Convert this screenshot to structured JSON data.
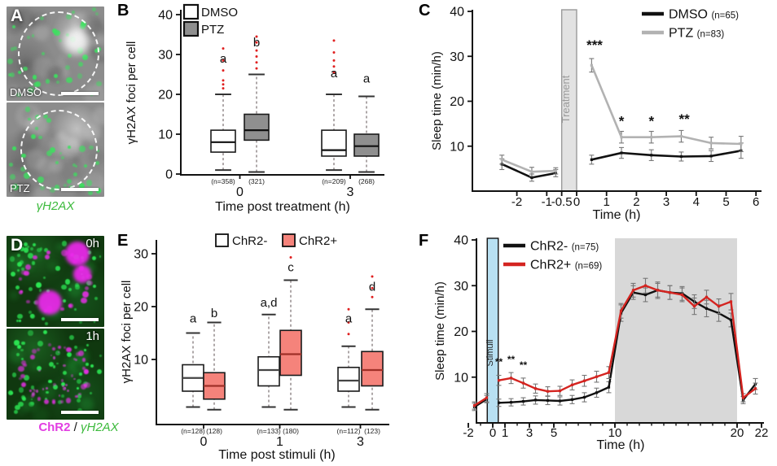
{
  "figure": {
    "colors": {
      "chr2_magenta": "#e23ee2",
      "stain_green": "#3cba3c",
      "ptz_box_gray": "#8f8f8f",
      "chr2plus_box_salmon": "#f5837b",
      "chr2plus_line_red": "#d42420",
      "stimuli_bar_blue": "#b8e0f2",
      "outlier_red": "#e02020"
    },
    "panels": {
      "A": {
        "label": "A",
        "images": [
          {
            "tag": "DMSO"
          },
          {
            "tag": "PTZ"
          }
        ],
        "caption": "γH2AX"
      },
      "D": {
        "label": "D",
        "images": [
          {
            "tag": "0h"
          },
          {
            "tag": "1h"
          }
        ],
        "caption": {
          "protein": "ChR2",
          "separator": " / ",
          "stain": "γH2AX"
        }
      }
    }
  },
  "chart_data": [
    {
      "id": "B",
      "panel_label": "B",
      "type": "box",
      "ylabel": "γH2AX foci per cell",
      "xlabel": "Time post treatment (h)",
      "ylim": [
        0,
        40
      ],
      "yticks": [
        0,
        10,
        20,
        30,
        40
      ],
      "legend": [
        {
          "name": "DMSO",
          "fill": "#ffffff"
        },
        {
          "name": "PTZ",
          "fill": "#8f8f8f"
        }
      ],
      "groups": [
        {
          "tick": "0",
          "boxes": [
            {
              "series": "DMSO",
              "n": "(n=358)",
              "letter": "a",
              "letter_y": 28,
              "lo": 1,
              "q1": 5.5,
              "med": 8,
              "q3": 11,
              "hi": 20,
              "outliers": [
                21.5,
                22.5,
                23.5,
                26,
                28.5,
                31.5
              ],
              "median_color": "#111111"
            },
            {
              "series": "PTZ",
              "n": "(321)",
              "letter": "b",
              "letter_y": 32,
              "lo": 0.5,
              "q1": 8.5,
              "med": 11,
              "q3": 15,
              "hi": 25,
              "outliers": [
                26.5,
                28,
                29.5,
                31,
                33,
                34.5
              ],
              "median_color": "#111111"
            }
          ]
        },
        {
          "tick": "3",
          "boxes": [
            {
              "series": "DMSO",
              "n": "(n=209)",
              "letter": "a",
              "letter_y": 24.3,
              "lo": 1,
              "q1": 4.5,
              "med": 6,
              "q3": 11,
              "hi": 20,
              "outliers": [
                25.5,
                27,
                28.5,
                30.5,
                33.5
              ],
              "median_color": "#111111"
            },
            {
              "series": "PTZ",
              "n": "(268)",
              "letter": "a",
              "letter_y": 23,
              "lo": 0.5,
              "q1": 4.5,
              "med": 7,
              "q3": 10,
              "hi": 19.5,
              "outliers": [],
              "median_color": "#111111"
            }
          ]
        }
      ]
    },
    {
      "id": "C",
      "panel_label": "C",
      "type": "line",
      "ylabel": "Sleep time (min/h)",
      "xlabel": "Time (h)",
      "ylim": [
        0,
        40
      ],
      "yticks": [
        10,
        20,
        30,
        40
      ],
      "xticks": [
        {
          "v": -2,
          "l": "-2"
        },
        {
          "v": -1,
          "l": "-1"
        },
        {
          "v": -0.5,
          "l": "-0.5"
        },
        {
          "v": 0,
          "l": "0"
        },
        {
          "v": 1,
          "l": "1"
        },
        {
          "v": 2,
          "l": "2"
        },
        {
          "v": 3,
          "l": "3"
        },
        {
          "v": 4,
          "l": "4"
        },
        {
          "v": 5,
          "l": "5"
        },
        {
          "v": 6,
          "l": "6"
        }
      ],
      "band": {
        "x0": -0.5,
        "x1": 0,
        "label": "Treatment",
        "fill": "#e2e2e2",
        "stroke": "#999999",
        "text_color": "#9a9a9a",
        "name": "treatment-band"
      },
      "series": [
        {
          "name": "DMSO",
          "n": "(n=65)",
          "color": "#111111",
          "x": [
            -2.5,
            -1.5,
            -0.7,
            0.5,
            1.5,
            2.5,
            3.5,
            4.5,
            5.5
          ],
          "y": [
            6,
            3,
            4,
            7,
            8.5,
            8,
            7.7,
            7.8,
            9
          ],
          "err": [
            1.2,
            0.8,
            0.8,
            1.0,
            1.2,
            1.2,
            1.0,
            1.2,
            1.7
          ]
        },
        {
          "name": "PTZ",
          "n": "(n=83)",
          "color": "#b2b2b2",
          "x": [
            -2.5,
            -1.5,
            -0.7,
            0.5,
            1.5,
            2.5,
            3.5,
            4.5,
            5.5
          ],
          "y": [
            7,
            4.3,
            4.5,
            28,
            12,
            12,
            12.2,
            10.7,
            10.5
          ],
          "err": [
            1.0,
            1.0,
            0.7,
            1.5,
            1.3,
            1.3,
            1.3,
            1.3,
            1.7
          ]
        }
      ],
      "annotations": [
        {
          "x": 0.6,
          "y": 31.5,
          "text": "***"
        },
        {
          "x": 1.5,
          "y": 14.6,
          "text": "*"
        },
        {
          "x": 2.5,
          "y": 14.6,
          "text": "*"
        },
        {
          "x": 3.6,
          "y": 15,
          "text": "**"
        }
      ]
    },
    {
      "id": "E",
      "panel_label": "E",
      "type": "box",
      "ylabel": "γH2AX foci per cell",
      "xlabel": "Time post stimuli (h)",
      "ylim": [
        0,
        30
      ],
      "yticks": [
        10,
        20,
        30
      ],
      "legend": [
        {
          "name": "ChR2-",
          "fill": "#ffffff"
        },
        {
          "name": "ChR2+",
          "fill": "#f5837b"
        }
      ],
      "groups": [
        {
          "tick": "0",
          "boxes": [
            {
              "series": "ChR2-",
              "n": "(n=128)",
              "letter": "a",
              "letter_y": 17,
              "lo": 1,
              "q1": 4,
              "med": 6.5,
              "q3": 9,
              "hi": 15,
              "outliers": [],
              "median_color": "#444444"
            },
            {
              "series": "ChR2+",
              "n": "(128)",
              "letter": "b",
              "letter_y": 18,
              "lo": 0.5,
              "q1": 2.5,
              "med": 5,
              "q3": 7.5,
              "hi": 17,
              "outliers": [],
              "median_color": "#a03028"
            }
          ]
        },
        {
          "tick": "1",
          "boxes": [
            {
              "series": "ChR2-",
              "n": "(n=133)",
              "letter": "a,d",
              "letter_y": 20,
              "lo": 1,
              "q1": 5,
              "med": 8,
              "q3": 10.5,
              "hi": 18.5,
              "outliers": [],
              "median_color": "#444444"
            },
            {
              "series": "ChR2+",
              "n": "(180)",
              "letter": "c",
              "letter_y": 26.7,
              "lo": 0.5,
              "q1": 7,
              "med": 11,
              "q3": 15.5,
              "hi": 25,
              "outliers": [
                29.3
              ],
              "median_color": "#a03028"
            }
          ]
        },
        {
          "tick": "3",
          "boxes": [
            {
              "series": "ChR2-",
              "n": "(n=112)",
              "letter": "a",
              "letter_y": 17,
              "lo": 1,
              "q1": 4,
              "med": 6,
              "q3": 8.5,
              "hi": 12.5,
              "outliers": [
                14.8,
                17,
                19.5
              ],
              "median_color": "#444444"
            },
            {
              "series": "ChR2+",
              "n": "(123)",
              "letter": "d",
              "letter_y": 23,
              "lo": 0.5,
              "q1": 5,
              "med": 8,
              "q3": 11.5,
              "hi": 19.5,
              "outliers": [
                21.8,
                23.5,
                25.7
              ],
              "median_color": "#a03028"
            }
          ]
        }
      ]
    },
    {
      "id": "F",
      "panel_label": "F",
      "type": "line",
      "ylabel": "Sleep time (min/h)",
      "xlabel": "Time (h)",
      "ylim": [
        0,
        40
      ],
      "yticks": [
        10,
        20,
        30,
        40
      ],
      "xticks": [
        {
          "v": -2,
          "l": "-2"
        },
        {
          "v": 0,
          "l": "0"
        },
        {
          "v": 1,
          "l": "1"
        },
        {
          "v": 3,
          "l": "3"
        },
        {
          "v": 5,
          "l": "5"
        },
        {
          "v": 10,
          "l": "10"
        },
        {
          "v": 20,
          "l": "20"
        },
        {
          "v": 22,
          "l": "22"
        }
      ],
      "minor_ticks": {
        "from": -2,
        "to": 22,
        "step": 1
      },
      "band": {
        "x0": -0.45,
        "x1": 0.45,
        "label": "Stimuli",
        "fill": "#b8e0f2",
        "stroke": "#111111",
        "text_color": "#222222",
        "name": "stimuli-band"
      },
      "shade": {
        "x0": 10,
        "x1": 20,
        "fill": "#d8d8d8"
      },
      "series": [
        {
          "name": "ChR2-",
          "n": "(n=75)",
          "color": "#111111",
          "x": [
            -1.5,
            -0.5,
            0.5,
            1.5,
            2.5,
            3.5,
            4.5,
            5.5,
            6.5,
            7.5,
            8.5,
            9.5,
            10.5,
            11.5,
            12.5,
            13.5,
            14.5,
            15.5,
            16.5,
            17.5,
            18.5,
            19.5,
            20.5,
            21.5
          ],
          "y": [
            3.5,
            5.2,
            4.4,
            4.5,
            4.7,
            5.0,
            4.9,
            4.8,
            5.1,
            5.6,
            6.6,
            7.8,
            24,
            28.5,
            28,
            29,
            28.5,
            28.3,
            26.5,
            25,
            24,
            22.5,
            5,
            8.5
          ],
          "err": [
            0.8,
            0.8,
            0.8,
            0.8,
            0.8,
            0.9,
            0.9,
            0.9,
            0.9,
            1,
            1,
            1.2,
            1.8,
            1.5,
            1.5,
            1.8,
            1.5,
            1.5,
            1.5,
            1.8,
            1.8,
            1.5,
            0.8,
            1.2
          ]
        },
        {
          "name": "ChR2+",
          "n": "(n=69)",
          "color": "#d42420",
          "x": [
            -1.5,
            -0.5,
            0.5,
            1.5,
            2.5,
            3.5,
            4.5,
            5.5,
            6.5,
            7.5,
            8.5,
            9.5,
            10.5,
            11.5,
            12.5,
            13.5,
            14.5,
            15.5,
            16.5,
            17.5,
            18.5,
            19.5,
            20.5,
            21.5
          ],
          "y": [
            3.8,
            5.5,
            9.3,
            9.8,
            8.7,
            7.5,
            6.9,
            7.0,
            8.3,
            9.2,
            10.1,
            11,
            24.5,
            29,
            30,
            29,
            28.5,
            28,
            25.5,
            27.5,
            25.5,
            26.5,
            5.5,
            7.5
          ],
          "err": [
            0.8,
            0.9,
            1.1,
            1.2,
            1.1,
            1,
            1,
            1,
            1.1,
            1.2,
            1.2,
            1.3,
            1.6,
            1.5,
            1.6,
            1.5,
            1.5,
            1.5,
            1.8,
            1.5,
            1.6,
            1.8,
            0.9,
            1.2
          ]
        }
      ],
      "annotations": [
        {
          "x": 0.5,
          "y": 12.6,
          "text": "**"
        },
        {
          "x": 1.5,
          "y": 13.2,
          "text": "**"
        },
        {
          "x": 2.5,
          "y": 11.9,
          "text": "**"
        }
      ]
    }
  ]
}
